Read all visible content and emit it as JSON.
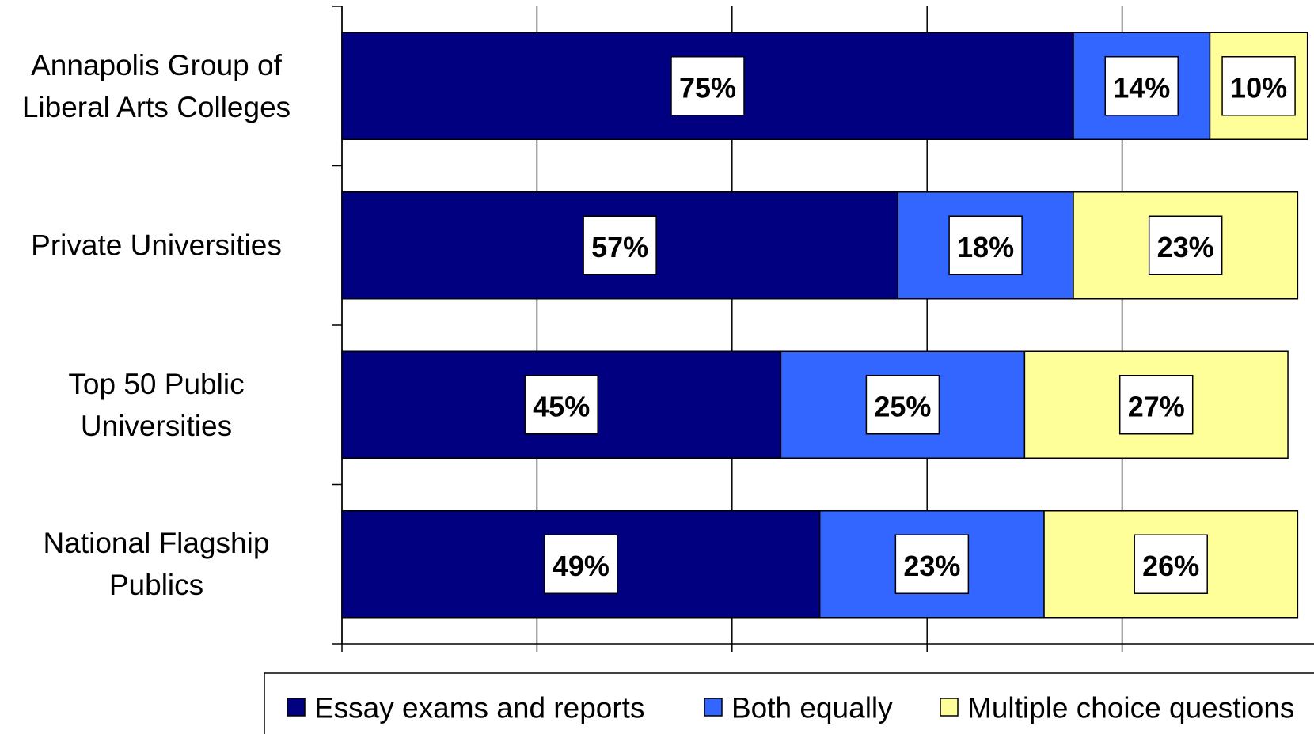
{
  "chart_data": {
    "type": "stacked-barh",
    "categories": [
      "Annapolis Group of Liberal Arts Colleges",
      "Private Universities",
      "Top 50 Public Universities",
      "National Flagship Publics"
    ],
    "series": [
      {
        "name": "Essay exams and reports",
        "color": "#000080",
        "values": [
          75,
          57,
          45,
          49
        ],
        "value_labels": [
          "75%",
          "57%",
          "45%",
          "49%"
        ]
      },
      {
        "name": "Both equally",
        "color": "#3366ff",
        "values": [
          14,
          18,
          25,
          23
        ],
        "value_labels": [
          "14%",
          "18%",
          "25%",
          "23%"
        ]
      },
      {
        "name": "Multiple choice questions",
        "color": "#ffff99",
        "values": [
          10,
          23,
          27,
          26
        ],
        "value_labels": [
          "10%",
          "23%",
          "27%",
          "26%"
        ]
      }
    ],
    "xlim": [
      0,
      100
    ],
    "xticks": [
      0,
      20,
      40,
      60,
      80,
      100
    ],
    "grid": true,
    "legend": "bottom"
  }
}
